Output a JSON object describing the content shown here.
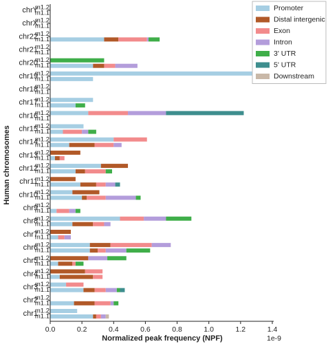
{
  "chart_data": {
    "type": "stacked-barh",
    "xlabel": "Normalized peak frequency (NPF)",
    "ylabel": "Human chromosomes",
    "x_offset_label": "1e-9",
    "categories": [
      "chr1",
      "chr2",
      "chr3",
      "chr4",
      "chr5",
      "chr6",
      "chr7",
      "chr8",
      "chr9",
      "chr10",
      "chr11",
      "chr12",
      "chr13",
      "chr14",
      "chr15",
      "chr16",
      "chr17",
      "chr18",
      "chr19",
      "chr20",
      "chr21",
      "chr22",
      "chrX",
      "chrY"
    ],
    "subcategories": [
      "m1.2",
      "m1.1"
    ],
    "xlim": [
      0,
      1.4
    ],
    "xticks": [
      {
        "value": 0,
        "label": "0.0"
      },
      0.2,
      0.4,
      0.6,
      0.8,
      {
        "value": 1,
        "label": "1.0"
      },
      1.2,
      1.4
    ],
    "legend": "upper right",
    "series": [
      {
        "name": "Promoter",
        "color": "#a6cee3",
        "values": [
          [
            0.17,
            0.27
          ],
          [
            0,
            0.15
          ],
          [
            0.1,
            0.21
          ],
          [
            0,
            0.06
          ],
          [
            0,
            0.05
          ],
          [
            0.25,
            0.25
          ],
          [
            0,
            0.05
          ],
          [
            0.44,
            0.14
          ],
          [
            0,
            0.04
          ],
          [
            0.14,
            0.2
          ],
          [
            0,
            0.19
          ],
          [
            0.32,
            0.16
          ],
          [
            0,
            0.03
          ],
          [
            0.4,
            0.12
          ],
          [
            0.21,
            0.08
          ],
          [
            0.24,
            0
          ],
          [
            0.27,
            0.16
          ],
          [
            0,
            0
          ],
          [
            1.36,
            0.27
          ],
          [
            0,
            0.27
          ],
          [
            0,
            0
          ],
          [
            0,
            0.34
          ],
          [
            0,
            0
          ],
          [
            0,
            0
          ]
        ]
      },
      {
        "name": "Distal intergenic",
        "color": "#b15928",
        "values": [
          [
            0,
            0.02
          ],
          [
            0,
            0.13
          ],
          [
            0,
            0.07
          ],
          [
            0.22,
            0.21
          ],
          [
            0.24,
            0.09
          ],
          [
            0.13,
            0.05
          ],
          [
            0.13,
            0
          ],
          [
            0,
            0.13
          ],
          [
            0,
            0
          ],
          [
            0.17,
            0.03
          ],
          [
            0.16,
            0.1
          ],
          [
            0.17,
            0.06
          ],
          [
            0.19,
            0.03
          ],
          [
            0,
            0.16
          ],
          [
            0,
            0
          ],
          [
            0,
            0
          ],
          [
            0,
            0
          ],
          [
            0,
            0
          ],
          [
            0,
            0
          ],
          [
            0,
            0.07
          ],
          [
            0,
            0
          ],
          [
            0,
            0.09
          ],
          [
            0,
            0
          ],
          [
            0,
            0
          ]
        ]
      },
      {
        "name": "Exon",
        "color": "#f28b8c",
        "values": [
          [
            0,
            0.03
          ],
          [
            0,
            0.1
          ],
          [
            0.11,
            0.07
          ],
          [
            0.11,
            0.06
          ],
          [
            0,
            0.02
          ],
          [
            0.26,
            0.05
          ],
          [
            0,
            0.04
          ],
          [
            0.15,
            0.07
          ],
          [
            0,
            0.08
          ],
          [
            0,
            0.12
          ],
          [
            0,
            0.06
          ],
          [
            0,
            0.13
          ],
          [
            0,
            0.03
          ],
          [
            0.21,
            0.12
          ],
          [
            0,
            0.12
          ],
          [
            0.25,
            0
          ],
          [
            0,
            0
          ],
          [
            0,
            0
          ],
          [
            0,
            0
          ],
          [
            0,
            0.07
          ],
          [
            0,
            0
          ],
          [
            0,
            0.18
          ],
          [
            0,
            0
          ],
          [
            0,
            0
          ]
        ]
      },
      {
        "name": "Intron",
        "color": "#b39ddb",
        "values": [
          [
            0,
            0.03
          ],
          [
            0,
            0.02
          ],
          [
            0,
            0.07
          ],
          [
            0,
            0
          ],
          [
            0.12,
            0
          ],
          [
            0.12,
            0.13
          ],
          [
            0,
            0.04
          ],
          [
            0.14,
            0.04
          ],
          [
            0,
            0.04
          ],
          [
            0,
            0.19
          ],
          [
            0,
            0.06
          ],
          [
            0,
            0
          ],
          [
            0,
            0
          ],
          [
            0,
            0.05
          ],
          [
            0,
            0.04
          ],
          [
            0.24,
            0
          ],
          [
            0,
            0
          ],
          [
            0,
            0
          ],
          [
            0,
            0
          ],
          [
            0,
            0.14
          ],
          [
            0,
            0
          ],
          [
            0,
            0.01
          ],
          [
            0,
            0
          ],
          [
            0,
            0
          ]
        ]
      },
      {
        "name": "3' UTR",
        "color": "#3fae49",
        "values": [
          [
            0,
            0
          ],
          [
            0,
            0.03
          ],
          [
            0,
            0.02
          ],
          [
            0,
            0
          ],
          [
            0.12,
            0.05
          ],
          [
            0,
            0.15
          ],
          [
            0,
            0
          ],
          [
            0.16,
            0
          ],
          [
            0,
            0.03
          ],
          [
            0,
            0.03
          ],
          [
            0,
            0
          ],
          [
            0,
            0.04
          ],
          [
            0,
            0
          ],
          [
            0,
            0
          ],
          [
            0,
            0.05
          ],
          [
            0,
            0
          ],
          [
            0,
            0.06
          ],
          [
            0,
            0
          ],
          [
            0,
            0
          ],
          [
            0.34,
            0
          ],
          [
            0,
            0
          ],
          [
            0,
            0.07
          ],
          [
            0,
            0
          ],
          [
            0,
            0
          ]
        ]
      },
      {
        "name": "5' UTR",
        "color": "#3e8e8e",
        "values": [
          [
            0,
            0
          ],
          [
            0,
            0
          ],
          [
            0,
            0.03
          ],
          [
            0,
            0
          ],
          [
            0,
            0
          ],
          [
            0,
            0
          ],
          [
            0,
            0
          ],
          [
            0,
            0
          ],
          [
            0,
            0
          ],
          [
            0,
            0
          ],
          [
            0,
            0.03
          ],
          [
            0,
            0
          ],
          [
            0,
            0
          ],
          [
            0,
            0
          ],
          [
            0,
            0
          ],
          [
            0.49,
            0
          ],
          [
            0,
            0
          ],
          [
            0,
            0
          ],
          [
            0,
            0
          ],
          [
            0,
            0
          ],
          [
            0,
            0
          ],
          [
            0,
            0
          ],
          [
            0,
            0
          ],
          [
            0,
            0
          ]
        ]
      },
      {
        "name": "Downstream",
        "color": "#c9b8a8",
        "values": [
          [
            0,
            0.02
          ],
          [
            0,
            0
          ],
          [
            0,
            0
          ],
          [
            0,
            0
          ],
          [
            0,
            0
          ],
          [
            0,
            0
          ],
          [
            0,
            0
          ],
          [
            0,
            0
          ],
          [
            0,
            0
          ],
          [
            0,
            0
          ],
          [
            0,
            0
          ],
          [
            0,
            0
          ],
          [
            0,
            0
          ],
          [
            0,
            0
          ],
          [
            0,
            0
          ],
          [
            0,
            0
          ],
          [
            0,
            0
          ],
          [
            0,
            0
          ],
          [
            0,
            0
          ],
          [
            0,
            0
          ],
          [
            0,
            0
          ],
          [
            0,
            0
          ],
          [
            0,
            0
          ],
          [
            0,
            0
          ]
        ]
      }
    ]
  }
}
